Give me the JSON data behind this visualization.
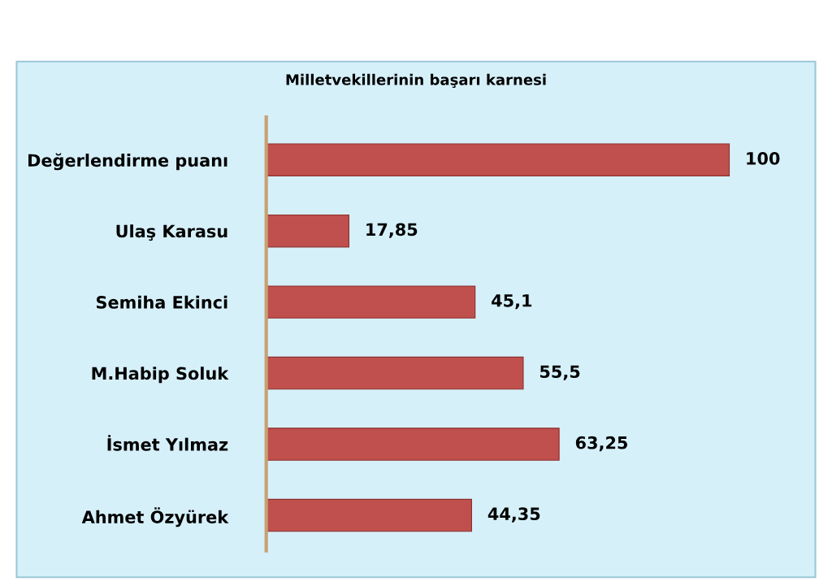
{
  "chart_data": {
    "type": "bar",
    "orientation": "horizontal",
    "title": "Milletvekillerinin başarı karnesi",
    "categories": [
      "Değerlendirme puanı",
      "Ulaş Karasu",
      "Semiha Ekinci",
      "M.Habip Soluk",
      "İsmet Yılmaz",
      "Ahmet Özyürek"
    ],
    "values": [
      100,
      17.85,
      45.1,
      55.5,
      63.25,
      44.35
    ],
    "value_labels": [
      "100",
      "17,85",
      "45,1",
      "55,5",
      "63,25",
      "44,35"
    ],
    "color": "#c0504d",
    "tick_labels": "y",
    "grid": false,
    "legend": false
  }
}
